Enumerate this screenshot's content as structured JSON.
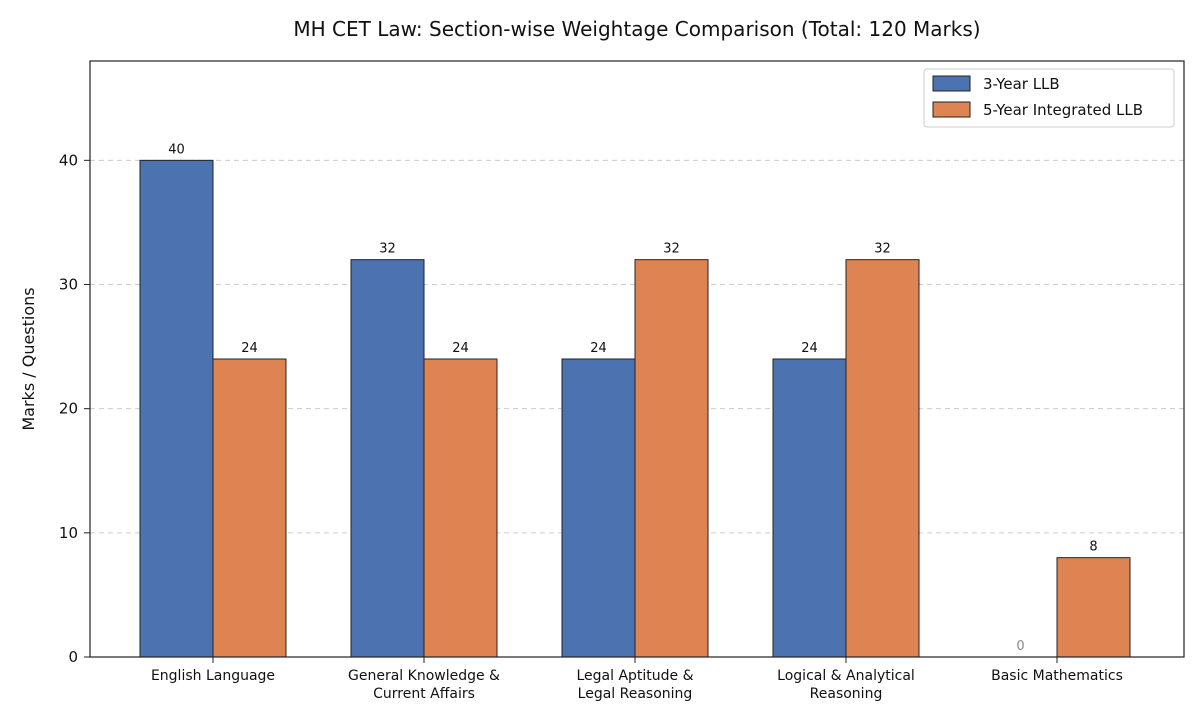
{
  "chart_data": {
    "type": "bar",
    "title": "MH CET Law: Section-wise Weightage Comparison (Total: 120 Marks)",
    "xlabel": "",
    "ylabel": "Marks / Questions",
    "ylim": [
      0,
      48
    ],
    "yticks": [
      0,
      10,
      20,
      30,
      40
    ],
    "grid": true,
    "legend_position": "top-right",
    "categories": [
      [
        "English Language"
      ],
      [
        "General Knowledge &",
        "Current Affairs"
      ],
      [
        "Legal Aptitude &",
        "Legal Reasoning"
      ],
      [
        "Logical & Analytical",
        "Reasoning"
      ],
      [
        "Basic Mathematics"
      ]
    ],
    "series": [
      {
        "name": "3-Year LLB",
        "color": "#4c72b0",
        "values": [
          40,
          32,
          24,
          24,
          0
        ]
      },
      {
        "name": "5-Year Integrated LLB",
        "color": "#dd8452",
        "values": [
          24,
          24,
          32,
          32,
          8
        ]
      }
    ]
  }
}
